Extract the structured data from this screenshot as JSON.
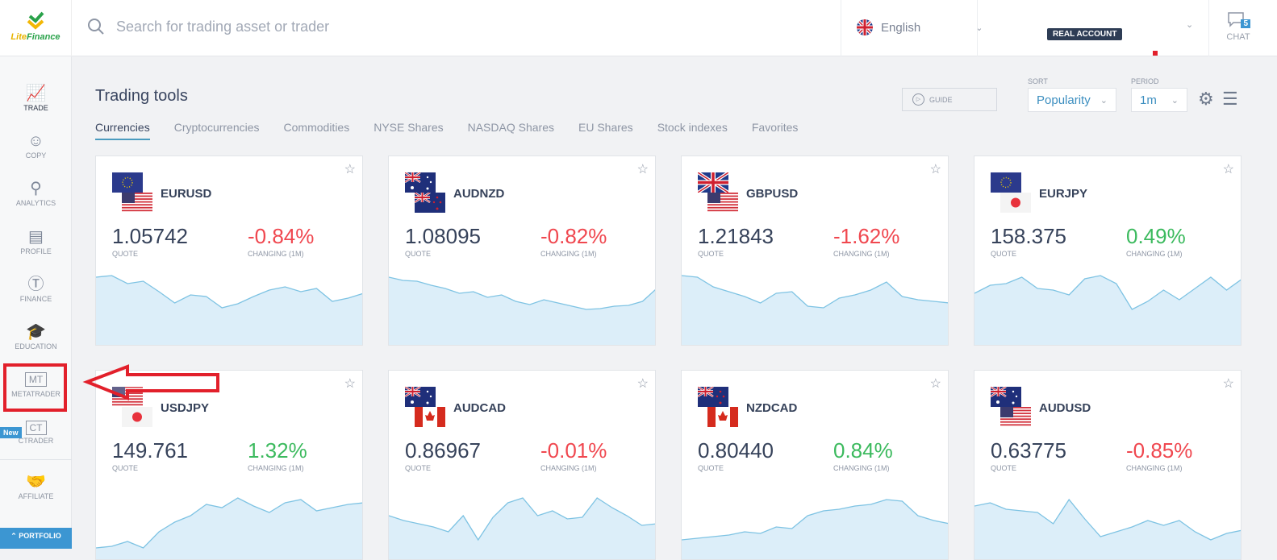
{
  "header": {
    "logo_text": "LiteFinance",
    "search_placeholder": "Search for trading asset or trader",
    "language": "English",
    "account_badge": "REAL ACCOUNT",
    "chat_label": "CHAT",
    "chat_count": "5"
  },
  "sidebar": {
    "items": [
      {
        "label": "TRADE",
        "icon": "chart-icon"
      },
      {
        "label": "COPY",
        "icon": "user-icon"
      },
      {
        "label": "ANALYTICS",
        "icon": "analytics-icon"
      },
      {
        "label": "PROFILE",
        "icon": "id-card-icon"
      },
      {
        "label": "FINANCE",
        "icon": "dollar-icon"
      },
      {
        "label": "EDUCATION",
        "icon": "graduation-cap-icon"
      },
      {
        "label": "METATRADER",
        "icon": "MT"
      },
      {
        "label": "CTRADER",
        "icon": "CT"
      },
      {
        "label": "AFFILIATE",
        "icon": "handshake-icon"
      }
    ],
    "new_badge": "New",
    "portfolio": "PORTFOLIO"
  },
  "main": {
    "title": "Trading tools",
    "tabs": [
      "Currencies",
      "Cryptocurrencies",
      "Commodities",
      "NYSE Shares",
      "NASDAQ Shares",
      "EU Shares",
      "Stock indexes",
      "Favorites"
    ],
    "guide": "GUIDE",
    "sort_label": "SORT",
    "sort_value": "Popularity",
    "period_label": "PERIOD",
    "period_value": "1m",
    "quote_label": "QUOTE",
    "change_label": "CHANGING (1M)"
  },
  "colors": {
    "up": "#3cba5e",
    "down": "#f0474f",
    "spark_line": "#7ec3e3",
    "spark_fill": "#dceef9",
    "accent": "#3c96d2",
    "highlight": "#e2202b"
  },
  "cards": [
    {
      "symbol": "EURUSD",
      "quote": "1.05742",
      "change": "-0.84%",
      "dir": "down",
      "flags": [
        "eu",
        "us"
      ],
      "spark": [
        80,
        82,
        72,
        75,
        62,
        48,
        58,
        56,
        42,
        47,
        56,
        64,
        68,
        62,
        66,
        50,
        54,
        60
      ]
    },
    {
      "symbol": "AUDNZD",
      "quote": "1.08095",
      "change": "-0.82%",
      "dir": "down",
      "flags": [
        "au",
        "nz"
      ],
      "spark": [
        80,
        76,
        75,
        70,
        66,
        60,
        62,
        55,
        58,
        50,
        46,
        52,
        48,
        44,
        40,
        41,
        44,
        45,
        50,
        66
      ]
    },
    {
      "symbol": "GBPUSD",
      "quote": "1.21843",
      "change": "-1.62%",
      "dir": "down",
      "flags": [
        "gb",
        "us"
      ],
      "spark": [
        82,
        80,
        68,
        62,
        56,
        48,
        60,
        62,
        44,
        42,
        54,
        58,
        64,
        74,
        56,
        52,
        50,
        48
      ]
    },
    {
      "symbol": "EURJPY",
      "quote": "158.375",
      "change": "0.49%",
      "dir": "up",
      "flags": [
        "eu",
        "jp"
      ],
      "spark": [
        60,
        70,
        72,
        80,
        66,
        64,
        58,
        78,
        82,
        72,
        40,
        50,
        64,
        52,
        66,
        80,
        64,
        78
      ]
    },
    {
      "symbol": "USDJPY",
      "quote": "149.761",
      "change": "1.32%",
      "dir": "up",
      "flags": [
        "us",
        "jp"
      ],
      "spark": [
        10,
        12,
        18,
        10,
        30,
        42,
        50,
        64,
        60,
        72,
        62,
        54,
        66,
        70,
        56,
        60,
        64,
        66
      ]
    },
    {
      "symbol": "AUDCAD",
      "quote": "0.86967",
      "change": "-0.01%",
      "dir": "down",
      "flags": [
        "au",
        "ca"
      ],
      "spark": [
        50,
        44,
        40,
        36,
        30,
        50,
        20,
        48,
        66,
        72,
        50,
        56,
        46,
        48,
        72,
        60,
        50,
        38,
        40
      ]
    },
    {
      "symbol": "NZDCAD",
      "quote": "0.80440",
      "change": "0.84%",
      "dir": "up",
      "flags": [
        "nz",
        "ca"
      ],
      "spark": [
        20,
        22,
        24,
        26,
        30,
        28,
        36,
        34,
        50,
        56,
        58,
        62,
        64,
        70,
        68,
        50,
        44,
        40
      ]
    },
    {
      "symbol": "AUDUSD",
      "quote": "0.63775",
      "change": "-0.85%",
      "dir": "down",
      "flags": [
        "au",
        "us"
      ],
      "spark": [
        62,
        66,
        58,
        56,
        54,
        40,
        70,
        46,
        24,
        30,
        36,
        44,
        38,
        44,
        30,
        20,
        28,
        32
      ]
    }
  ]
}
